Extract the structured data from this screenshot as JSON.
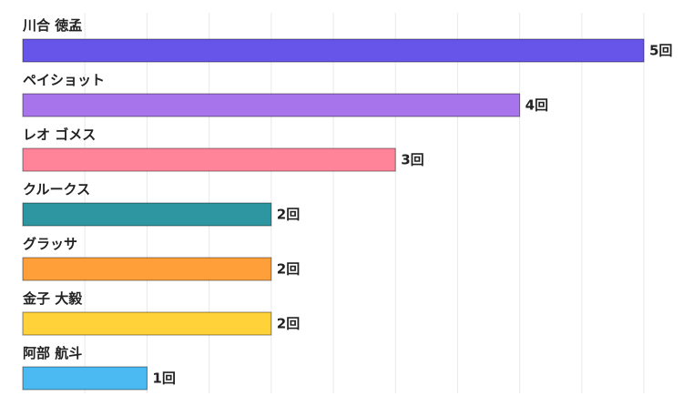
{
  "chart_data": {
    "type": "bar",
    "orientation": "horizontal",
    "title": "",
    "xlabel": "",
    "ylabel": "",
    "xlim": [
      0,
      5.3
    ],
    "grid": true,
    "legend": "none",
    "value_suffix": "回",
    "categories": [
      "川合 徳孟",
      "ペイショット",
      "レオ ゴメス",
      "クルークス",
      "グラッサ",
      "金子 大毅",
      "阿部 航斗"
    ],
    "values": [
      5,
      4,
      3,
      2,
      2,
      2,
      1
    ],
    "value_labels": [
      "5回",
      "4回",
      "3回",
      "2回",
      "2回",
      "2回",
      "1回"
    ],
    "colors": [
      "#6655e8",
      "#a774ec",
      "#ff8399",
      "#2e96a0",
      "#ff9f3a",
      "#ffd23a",
      "#4bb9f2"
    ]
  }
}
